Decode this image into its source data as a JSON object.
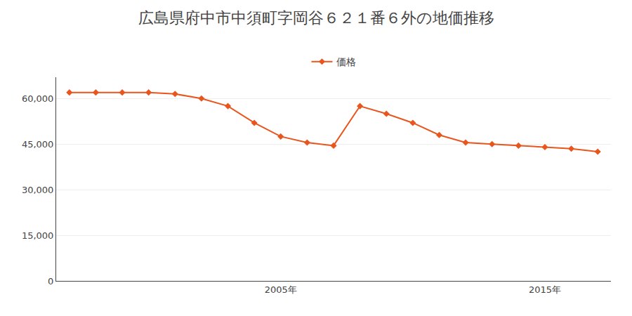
{
  "chart_data": {
    "type": "line",
    "title": "広島県府中市中須町字岡谷６２１番６外の地価推移",
    "x": [
      1997,
      1998,
      1999,
      2000,
      2001,
      2002,
      2003,
      2004,
      2005,
      2006,
      2007,
      2008,
      2009,
      2010,
      2011,
      2012,
      2013,
      2014,
      2015,
      2016,
      2017
    ],
    "series": [
      {
        "name": "価格",
        "color": "#e8561e",
        "marker": "diamond",
        "values": [
          62000,
          62000,
          62000,
          62000,
          61500,
          60000,
          57500,
          52000,
          47500,
          45500,
          44500,
          57500,
          55000,
          52000,
          48000,
          45500,
          45000,
          44500,
          44000,
          43500,
          42500
        ]
      }
    ],
    "xlim": [
      1996.5,
      2017.5
    ],
    "xticks": [
      {
        "value": 2005,
        "label": "2005年"
      },
      {
        "value": 2015,
        "label": "2015年"
      }
    ],
    "ylim": [
      0,
      67000
    ],
    "yticks": [
      0,
      {
        "value": 15000,
        "label": "15,000"
      },
      {
        "value": 30000,
        "label": "30,000"
      },
      {
        "value": 45000,
        "label": "45,000"
      },
      {
        "value": 60000,
        "label": "60,000"
      }
    ],
    "grid": true,
    "legend": "top"
  }
}
